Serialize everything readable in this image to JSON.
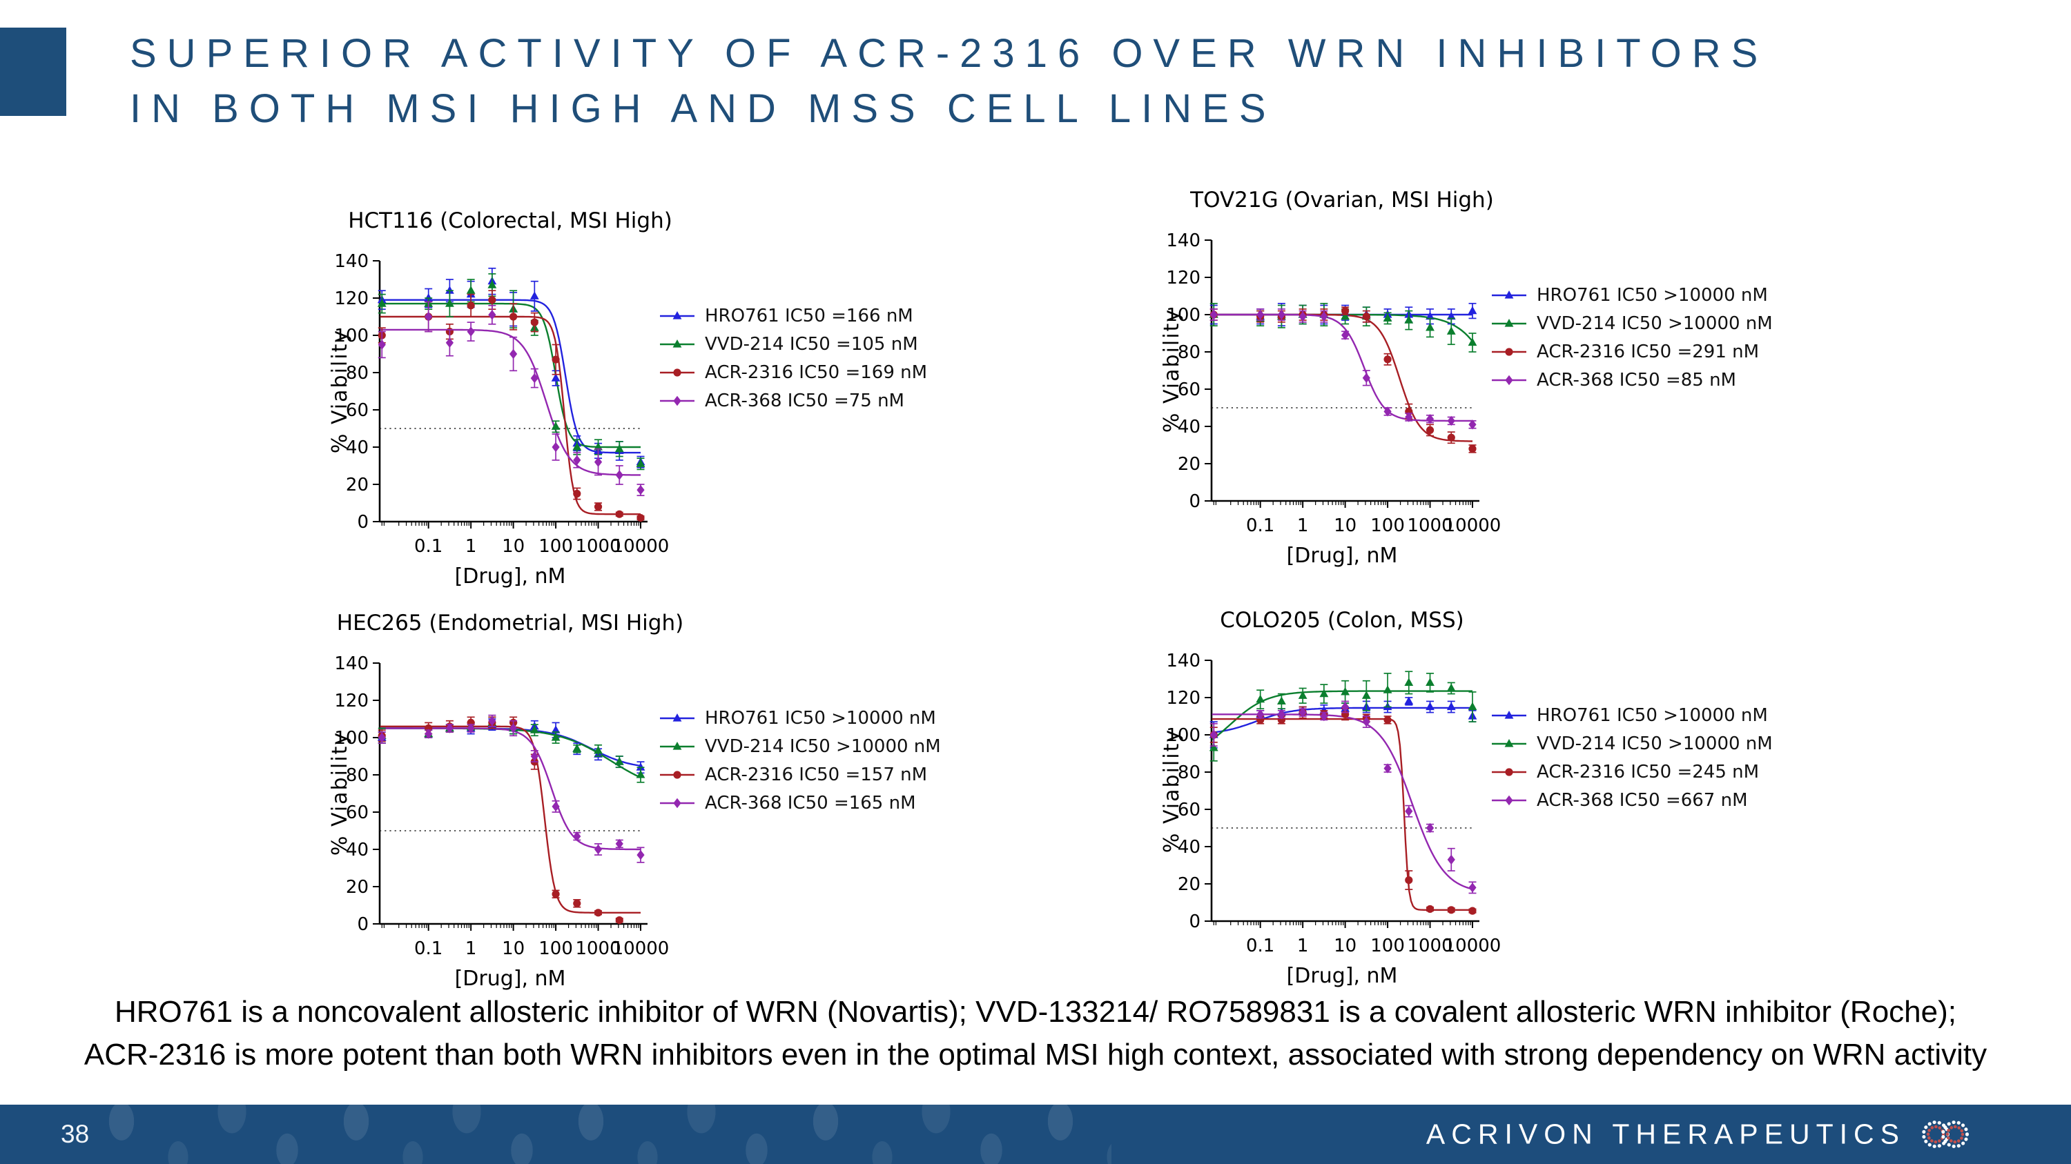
{
  "slide": {
    "title_lines": [
      "SUPERIOR ACTIVITY OF ACR-2316 OVER WRN INHIBITORS",
      "IN BOTH MSI HIGH AND MSS CELL LINES"
    ],
    "footnote_lines": [
      "HRO761 is a noncovalent allosteric inhibitor of WRN (Novartis); VVD-133214/ RO7589831 is a covalent allosteric WRN inhibitor (Roche);",
      "ACR-2316 is more potent than both WRN inhibitors even in the optimal MSI high context, associated with strong dependency on WRN activity"
    ],
    "page_number": "38",
    "footer_brand": "ACRIVON THERAPEUTICS",
    "colors": {
      "accent": "#1E4E7A",
      "title_text": "#1F4E79",
      "footer_bg": "#1D4D7C",
      "logo_outer_ring": "#FFFFFF",
      "logo_inner_ring": "#C0504D"
    }
  },
  "chart_data": [
    {
      "type": "line",
      "title": "HCT116 (Colorectal, MSI High)",
      "xlabel": "[Drug], nM",
      "ylabel": "% Viability",
      "xscale": "log",
      "xticks": [
        0.1,
        1,
        10,
        100,
        1000,
        10000
      ],
      "ylim": [
        0,
        140
      ],
      "yticks": [
        0,
        20,
        40,
        60,
        80,
        100,
        120,
        140
      ],
      "reference_line_y": 50,
      "x": [
        0.008,
        0.1,
        0.316,
        1,
        3.16,
        10,
        31.6,
        100,
        316,
        1000,
        3162,
        10000
      ],
      "series": [
        {
          "name": "HRO761",
          "label": "HRO761 IC50 =166 nM",
          "color": "#2222DE",
          "marker": "triangle",
          "values": [
            119,
            120,
            124,
            122,
            129,
            114,
            121,
            77,
            42,
            38,
            38,
            32
          ],
          "err": [
            5,
            5,
            6,
            7,
            7,
            9,
            8,
            4,
            4,
            4,
            5,
            3
          ],
          "curve": {
            "top": 119,
            "bottom": 37,
            "ec50": 170,
            "hill": 3
          }
        },
        {
          "name": "VVD-214",
          "label": "VVD-214 IC50 =105 nM",
          "color": "#0B7F2E",
          "marker": "triangle",
          "values": [
            117,
            117,
            117,
            124,
            127,
            114,
            104,
            51,
            40,
            40,
            39,
            31
          ],
          "err": [
            5,
            3,
            7,
            6,
            6,
            10,
            4,
            3,
            4,
            4,
            4,
            3
          ],
          "curve": {
            "top": 117,
            "bottom": 40,
            "ec50": 100,
            "hill": 3
          }
        },
        {
          "name": "ACR-2316",
          "label": "ACR-2316 IC50 =169 nM",
          "color": "#A81E24",
          "marker": "circle",
          "values": [
            100,
            110,
            102,
            116,
            119,
            110,
            107,
            87,
            15,
            8,
            4,
            2
          ],
          "err": [
            4,
            8,
            4,
            6,
            5,
            7,
            5,
            8,
            3,
            2,
            1,
            1
          ],
          "curve": {
            "top": 110,
            "bottom": 4,
            "ec50": 160,
            "hill": 4
          }
        },
        {
          "name": "ACR-368",
          "label": "ACR-368 IC50 =75 nM",
          "color": "#9327B0",
          "marker": "diamond",
          "values": [
            95,
            110,
            96,
            102,
            111,
            90,
            77,
            40,
            33,
            32,
            25,
            17
          ],
          "err": [
            7,
            8,
            7,
            5,
            5,
            9,
            5,
            7,
            4,
            7,
            5,
            3
          ],
          "curve": {
            "top": 103,
            "bottom": 25,
            "ec50": 60,
            "hill": 1.6
          }
        }
      ]
    },
    {
      "type": "line",
      "title": "TOV21G (Ovarian, MSI High)",
      "xlabel": "[Drug], nM",
      "ylabel": "% Viability",
      "xscale": "log",
      "xticks": [
        0.1,
        1,
        10,
        100,
        1000,
        10000
      ],
      "ylim": [
        0,
        140
      ],
      "yticks": [
        0,
        20,
        40,
        60,
        80,
        100,
        120,
        140
      ],
      "reference_line_y": 50,
      "x": [
        0.008,
        0.1,
        0.316,
        1,
        3.16,
        10,
        31.6,
        100,
        316,
        1000,
        3162,
        10000
      ],
      "series": [
        {
          "name": "HRO761",
          "label": "HRO761 IC50 >10000 nM",
          "color": "#2222DE",
          "marker": "triangle",
          "values": [
            100,
            99,
            100,
            100,
            100,
            101,
            100,
            100,
            100,
            99,
            99,
            102
          ],
          "err": [
            5,
            4,
            6,
            5,
            5,
            4,
            4,
            3,
            4,
            4,
            4,
            4
          ],
          "curve": {
            "top": 100,
            "bottom": 100,
            "ec50": 1,
            "hill": 1
          }
        },
        {
          "name": "VVD-214",
          "label": "VVD-214 IC50 >10000 nM",
          "color": "#0B7F2E",
          "marker": "triangle",
          "values": [
            100,
            98,
            99,
            100,
            100,
            99,
            99,
            98,
            97,
            93,
            91,
            85
          ],
          "err": [
            6,
            4,
            6,
            5,
            6,
            4,
            5,
            3,
            5,
            5,
            7,
            5
          ],
          "curve": {
            "top": 100,
            "bottom": 0,
            "ec50": 60000,
            "hill": 1
          }
        },
        {
          "name": "ACR-2316",
          "label": "ACR-2316 IC50 =291 nM",
          "color": "#A81E24",
          "marker": "circle",
          "values": [
            100,
            99,
            99,
            100,
            100,
            102,
            99,
            76,
            48,
            38,
            34,
            28
          ],
          "err": [
            3,
            3,
            3,
            3,
            3,
            2,
            3,
            3,
            4,
            3,
            3,
            2
          ],
          "curve": {
            "top": 100,
            "bottom": 32,
            "ec50": 190,
            "hill": 1.8
          }
        },
        {
          "name": "ACR-368",
          "label": "ACR-368 IC50 =85 nM",
          "color": "#9327B0",
          "marker": "diamond",
          "values": [
            100,
            100,
            100,
            99,
            99,
            89,
            66,
            48,
            45,
            44,
            43,
            41
          ],
          "err": [
            3,
            3,
            3,
            3,
            3,
            2,
            4,
            2,
            2,
            2,
            2,
            2
          ],
          "curve": {
            "top": 100,
            "bottom": 43,
            "ec50": 28,
            "hill": 1.8
          }
        }
      ]
    },
    {
      "type": "line",
      "title": "HEC265 (Endometrial, MSI High)",
      "xlabel": "[Drug], nM",
      "ylabel": "% Viability",
      "xscale": "log",
      "xticks": [
        0.1,
        1,
        10,
        100,
        1000,
        10000
      ],
      "ylim": [
        0,
        140
      ],
      "yticks": [
        0,
        20,
        40,
        60,
        80,
        100,
        120,
        140
      ],
      "reference_line_y": 50,
      "x": [
        0.008,
        0.1,
        0.316,
        1,
        3.16,
        10,
        31.6,
        100,
        316,
        1000,
        3162,
        10000
      ],
      "series": [
        {
          "name": "HRO761",
          "label": "HRO761 IC50 >10000 nM",
          "color": "#2222DE",
          "marker": "triangle",
          "values": [
            100,
            102,
            105,
            105,
            107,
            105,
            106,
            104,
            94,
            91,
            87,
            84
          ],
          "err": [
            3,
            2,
            2,
            3,
            3,
            3,
            3,
            4,
            3,
            3,
            3,
            3
          ],
          "curve": {
            "top": 105,
            "bottom": 83,
            "ec50": 700,
            "hill": 0.9
          }
        },
        {
          "name": "VVD-214",
          "label": "VVD-214 IC50 >10000 nM",
          "color": "#0B7F2E",
          "marker": "triangle",
          "values": [
            101,
            102,
            105,
            106,
            108,
            105,
            104,
            100,
            94,
            93,
            87,
            80
          ],
          "err": [
            4,
            2,
            2,
            2,
            3,
            3,
            3,
            3,
            2,
            3,
            3,
            4
          ],
          "curve": {
            "top": 105,
            "bottom": 70,
            "ec50": 2000,
            "hill": 0.7
          }
        },
        {
          "name": "ACR-2316",
          "label": "ACR-2316 IC50 =157 nM",
          "color": "#A81E24",
          "marker": "circle",
          "values": [
            101,
            105,
            106,
            108,
            108,
            108,
            87,
            16,
            11,
            6,
            2,
            null
          ],
          "err": [
            3,
            3,
            3,
            3,
            3,
            3,
            4,
            2,
            2,
            1,
            1,
            null
          ],
          "curve": {
            "top": 106,
            "bottom": 6,
            "ec50": 55,
            "hill": 3.5
          }
        },
        {
          "name": "ACR-368",
          "label": "ACR-368 IC50 =165 nM",
          "color": "#9327B0",
          "marker": "diamond",
          "values": [
            100,
            102,
            105,
            105,
            109,
            105,
            90,
            63,
            47,
            40,
            43,
            37
          ],
          "err": [
            3,
            2,
            2,
            2,
            3,
            4,
            3,
            3,
            2,
            3,
            2,
            4
          ],
          "curve": {
            "top": 105,
            "bottom": 40,
            "ec50": 80,
            "hill": 1.8
          }
        }
      ]
    },
    {
      "type": "line",
      "title": "COLO205 (Colon, MSS)",
      "xlabel": "[Drug], nM",
      "ylabel": "% Viability",
      "xscale": "log",
      "xticks": [
        0.1,
        1,
        10,
        100,
        1000,
        10000
      ],
      "ylim": [
        0,
        140
      ],
      "yticks": [
        0,
        20,
        40,
        60,
        80,
        100,
        120,
        140
      ],
      "reference_line_y": 50,
      "x": [
        0.008,
        0.1,
        0.316,
        1,
        3.16,
        10,
        31.6,
        100,
        316,
        1000,
        3162,
        10000
      ],
      "series": [
        {
          "name": "HRO761",
          "label": "HRO761 IC50 >10000 nM",
          "color": "#2222DE",
          "marker": "triangle",
          "values": [
            100,
            111,
            112,
            113,
            113,
            114,
            115,
            115,
            118,
            115,
            115,
            110
          ],
          "err": [
            7,
            2,
            2,
            2,
            3,
            3,
            3,
            3,
            2,
            3,
            3,
            3
          ],
          "curve": {
            "top": 100,
            "bottom": 114.5,
            "ec50": 0.08,
            "hill": 1
          }
        },
        {
          "name": "VVD-214",
          "label": "VVD-214 IC50 >10000 nM",
          "color": "#0B7F2E",
          "marker": "triangle",
          "values": [
            93,
            119,
            118,
            121,
            122,
            123,
            121,
            124,
            128,
            128,
            125,
            115
          ],
          "err": [
            7,
            5,
            4,
            4,
            5,
            6,
            8,
            9,
            6,
            5,
            3,
            8
          ],
          "curve": {
            "top": 88,
            "bottom": 123.5,
            "ec50": 0.02,
            "hill": 1
          }
        },
        {
          "name": "ACR-2316",
          "label": "ACR-2316 IC50 =245 nM",
          "color": "#A81E24",
          "marker": "circle",
          "values": [
            100,
            108,
            108,
            112,
            111,
            111,
            109,
            108,
            22,
            6.5,
            6,
            5.5
          ],
          "err": [
            4,
            2,
            2,
            3,
            2,
            3,
            2,
            2,
            5,
            1,
            1,
            1
          ],
          "curve": {
            "top": 108.5,
            "bottom": 6,
            "ec50": 245,
            "hill": 8
          }
        },
        {
          "name": "ACR-368",
          "label": "ACR-368 IC50 =667 nM",
          "color": "#9327B0",
          "marker": "diamond",
          "values": [
            100,
            111,
            111,
            112,
            110,
            115,
            107,
            82,
            59,
            50,
            33,
            18
          ],
          "err": [
            6,
            2,
            2,
            2,
            2,
            3,
            3,
            2,
            3,
            2,
            6,
            3
          ],
          "curve": {
            "top": 111,
            "bottom": 15,
            "ec50": 380,
            "hill": 1.15
          }
        }
      ]
    }
  ]
}
